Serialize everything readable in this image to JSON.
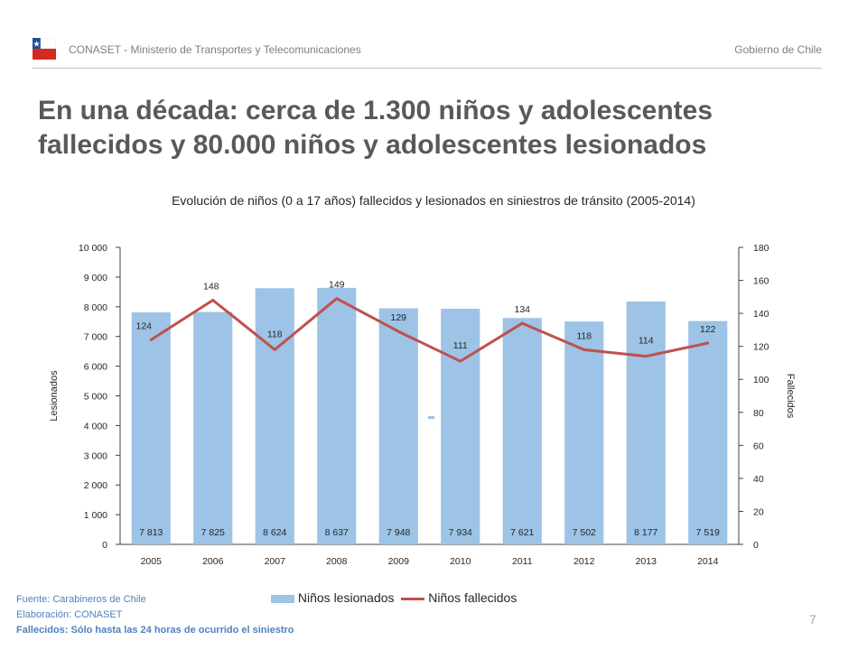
{
  "header": {
    "org": "CONASET  - Ministerio de Transportes y Telecomunicaciones",
    "gov": "Gobierno de Chile"
  },
  "slide": {
    "title_line1": "En una década: cerca de 1.300 niños y adolescentes",
    "title_line2": "fallecidos y 80.000 niños y adolescentes lesionados",
    "page_number": "7"
  },
  "colors": {
    "bar": "#9dc3e6",
    "line": "#c0504d",
    "flag_blue": "#1f4e9c",
    "flag_red": "#d52b1e"
  },
  "chart_data": {
    "type": "bar",
    "title": "Evolución de niños (0 a 17 años) fallecidos y lesionados en siniestros de tránsito (2005-2014)",
    "categories": [
      "2005",
      "2006",
      "2007",
      "2008",
      "2009",
      "2010",
      "2011",
      "2012",
      "2013",
      "2014"
    ],
    "series": [
      {
        "name": "Niños lesionados",
        "type": "bar",
        "axis": "left",
        "values": [
          7813,
          7825,
          8624,
          8637,
          7948,
          7934,
          7621,
          7502,
          8177,
          7519
        ],
        "labels": [
          "7 813",
          "7 825",
          "8 624",
          "8 637",
          "7 948",
          "7 934",
          "7 621",
          "7 502",
          "8 177",
          "7 519"
        ]
      },
      {
        "name": "Niños fallecidos",
        "type": "line",
        "axis": "right",
        "values": [
          124,
          148,
          118,
          149,
          129,
          111,
          134,
          118,
          114,
          122
        ],
        "labels": [
          "124",
          "148",
          "118",
          "149",
          "129",
          "111",
          "134",
          "118",
          "114",
          "122"
        ]
      }
    ],
    "ylabel": "Lesionados",
    "ylabel_right": "Fallecidos",
    "ylim": [
      0,
      10000
    ],
    "ylim_right": [
      0,
      180
    ],
    "yticks": [
      "0",
      "1 000",
      "2 000",
      "3 000",
      "4 000",
      "5 000",
      "6 000",
      "7 000",
      "8 000",
      "9 000",
      "10 000"
    ],
    "yticks_right": [
      "0",
      "20",
      "40",
      "60",
      "80",
      "100",
      "120",
      "140",
      "160",
      "180"
    ],
    "legend": "bottom",
    "grid": false
  },
  "footer": {
    "source": "Fuente: Carabineros de Chile",
    "elaboration": "Elaboración: CONASET",
    "note": "Fallecidos:  Sólo hasta las 24 horas de ocurrido el siniestro"
  }
}
